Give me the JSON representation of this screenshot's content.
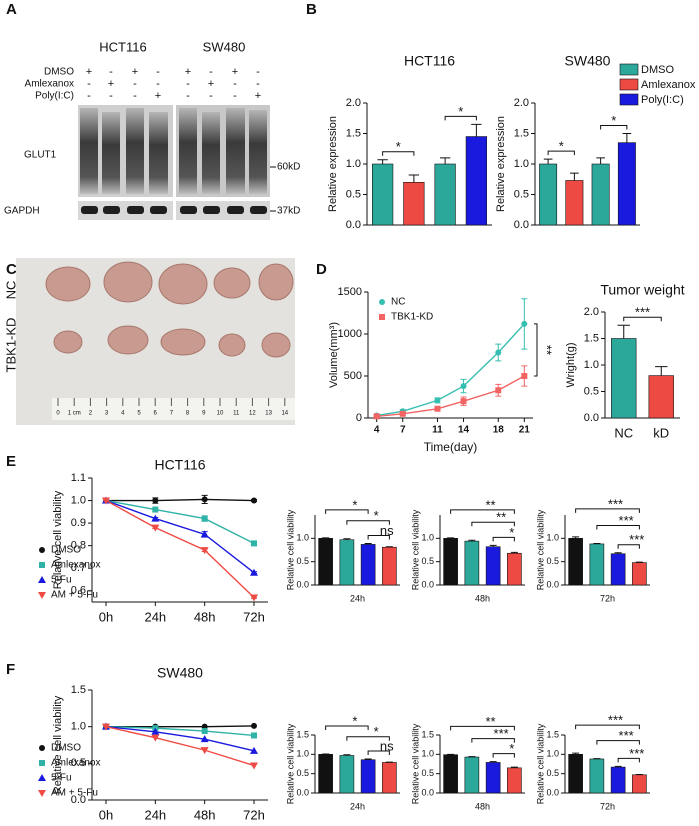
{
  "panel_labels": [
    "A",
    "B",
    "C",
    "D",
    "E",
    "F"
  ],
  "blot": {
    "cell_lines": [
      "HCT116",
      "SW480"
    ],
    "conditions": [
      {
        "name": "DMSO",
        "signs": [
          "+",
          "-",
          "+",
          "-",
          "+",
          "-",
          "+",
          "-"
        ]
      },
      {
        "name": "Amlexanox",
        "signs": [
          "-",
          "+",
          "-",
          "-",
          "-",
          "+",
          "-",
          "-"
        ]
      },
      {
        "name": "Poly(I:C)",
        "signs": [
          "-",
          "-",
          "-",
          "+",
          "-",
          "-",
          "-",
          "+"
        ]
      }
    ],
    "bands": [
      "GLUT1",
      "GAPDH"
    ],
    "markers": [
      "60kD",
      "37kD"
    ]
  },
  "photo": {
    "groups": [
      "NC",
      "TBK1-KD"
    ],
    "ruler": [
      "0",
      "1 cm",
      "2",
      "3",
      "4",
      "5",
      "6",
      "7",
      "8",
      "9",
      "10",
      "11",
      "12",
      "13",
      "14"
    ]
  },
  "chart_data": [
    {
      "type": "bar",
      "title": "HCT116",
      "ylabel": "Relative expression",
      "values": [
        1.0,
        0.7,
        1.0,
        1.45
      ],
      "errors": [
        0.07,
        0.12,
        0.1,
        0.2
      ],
      "colors": [
        "#2ca89a",
        "#ee4a44",
        "#2ca89a",
        "#1a1adf"
      ],
      "ylim": [
        0,
        2
      ],
      "yticks": [
        {
          "value": 0,
          "label": "0.0"
        },
        0.5,
        {
          "value": 1,
          "label": "1.0"
        },
        1.5,
        {
          "value": 2,
          "label": "2.0"
        }
      ],
      "annotations": [
        "*",
        "*"
      ]
    },
    {
      "type": "bar",
      "title": "SW480",
      "ylabel": "Relative expression",
      "values": [
        1.0,
        0.73,
        1.0,
        1.35
      ],
      "errors": [
        0.08,
        0.12,
        0.1,
        0.15
      ],
      "colors": [
        "#2ca89a",
        "#ee4a44",
        "#2ca89a",
        "#1a1adf"
      ],
      "ylim": [
        0,
        2
      ],
      "yticks": [
        {
          "value": 0,
          "label": "0.0"
        },
        0.5,
        {
          "value": 1,
          "label": "1.0"
        },
        1.5,
        {
          "value": 2,
          "label": "2.0"
        }
      ],
      "annotations": [
        "*",
        "*"
      ],
      "legend": [
        {
          "name": "DMSO",
          "color": "#2ca89a"
        },
        {
          "name": "Amlexanox",
          "color": "#ee4a44"
        },
        {
          "name": "Poly(I:C)",
          "color": "#1a1adf"
        }
      ]
    },
    {
      "type": "line",
      "xlabel": "Time(day)",
      "ylabel": "Volume(mm³)",
      "x": [
        4,
        7,
        11,
        14,
        18,
        21
      ],
      "xlim": [
        3,
        22
      ],
      "xticks": [
        4,
        7,
        11,
        14,
        18,
        21
      ],
      "ylim": [
        0,
        1500
      ],
      "yticks": [
        0,
        500,
        1000,
        1500
      ],
      "legend_position": "upper left",
      "annotations": [
        "**"
      ],
      "series": [
        {
          "name": "NC",
          "color": "#36bfb0",
          "marker": "circle",
          "values": [
            30,
            80,
            210,
            380,
            780,
            1120
          ],
          "errors": [
            10,
            20,
            30,
            80,
            100,
            300
          ]
        },
        {
          "name": "TBK1-KD",
          "color": "#f26363",
          "marker": "square",
          "values": [
            20,
            50,
            110,
            200,
            330,
            500
          ],
          "errors": [
            5,
            15,
            20,
            50,
            70,
            120
          ]
        }
      ]
    },
    {
      "type": "bar",
      "title": "Tumor weight",
      "ylabel": "Wright(g)",
      "categories": [
        "NC",
        "kD"
      ],
      "values": [
        1.5,
        0.8
      ],
      "errors": [
        0.25,
        0.17
      ],
      "colors": [
        "#2ca89a",
        "#ee4a44"
      ],
      "ylim": [
        0,
        2
      ],
      "yticks": [
        {
          "value": 0,
          "label": "0.0"
        },
        0.5,
        {
          "value": 1,
          "label": "1.0"
        },
        1.5,
        {
          "value": 2,
          "label": "2.0"
        }
      ],
      "annotations": [
        "***"
      ]
    },
    {
      "type": "line",
      "title": "HCT116",
      "ylabel": "Relative cell viability",
      "categories": [
        "0h",
        "24h",
        "48h",
        "72h"
      ],
      "ylim": [
        0.55,
        1.1
      ],
      "yticks": [
        0.6,
        0.7,
        0.8,
        0.9,
        {
          "value": 1,
          "label": "1.0"
        },
        1.1
      ],
      "legend_position": "lower left",
      "series": [
        {
          "name": "DMSO",
          "color": "#111111",
          "marker": "circle",
          "values": [
            1.0,
            1.0,
            1.005,
            1.0
          ],
          "errors": [
            0,
            0.012,
            0.018,
            0.004
          ]
        },
        {
          "name": "Amlexanox",
          "color": "#2fb3a7",
          "marker": "square",
          "values": [
            1.0,
            0.96,
            0.92,
            0.81
          ],
          "errors": [
            0,
            0.006,
            0.012,
            0.005
          ]
        },
        {
          "name": "5-Fu",
          "color": "#1a1adf",
          "marker": "triangle-up",
          "values": [
            1.0,
            0.92,
            0.85,
            0.68
          ],
          "errors": [
            0,
            0.005,
            0.012,
            0.004
          ]
        },
        {
          "name": "AM + 5-Fu",
          "color": "#f04a44",
          "marker": "triangle-down",
          "values": [
            1.0,
            0.88,
            0.78,
            0.57
          ],
          "errors": [
            0,
            0.004,
            0.006,
            0.004
          ]
        }
      ]
    },
    {
      "type": "bar",
      "xlabel": "24h",
      "ylabel": "Relative cell viability",
      "values": [
        1.0,
        0.97,
        0.87,
        0.81
      ],
      "errors": [
        0.01,
        0.02,
        0.02,
        0.01
      ],
      "colors": [
        "#111111",
        "#2ca89a",
        "#1a1adf",
        "#ee4a44"
      ],
      "ylim": [
        0,
        1.5
      ],
      "yticks": [
        {
          "value": 0,
          "label": "0.0"
        },
        0.5,
        {
          "value": 1,
          "label": "1.0"
        }
      ],
      "annotations": [
        "*",
        "*",
        "ns"
      ]
    },
    {
      "type": "bar",
      "xlabel": "48h",
      "ylabel": "Relative cell viability",
      "values": [
        1.0,
        0.94,
        0.82,
        0.68
      ],
      "errors": [
        0.01,
        0.02,
        0.03,
        0.02
      ],
      "colors": [
        "#111111",
        "#2ca89a",
        "#1a1adf",
        "#ee4a44"
      ],
      "ylim": [
        0,
        1.5
      ],
      "yticks": [
        {
          "value": 0,
          "label": "0.0"
        },
        0.5,
        {
          "value": 1,
          "label": "1.0"
        }
      ],
      "annotations": [
        "**",
        "**",
        "*"
      ]
    },
    {
      "type": "bar",
      "xlabel": "72h",
      "ylabel": "Relative cell viability",
      "values": [
        1.0,
        0.88,
        0.67,
        0.48
      ],
      "errors": [
        0.03,
        0.01,
        0.02,
        0.01
      ],
      "colors": [
        "#111111",
        "#2ca89a",
        "#1a1adf",
        "#ee4a44"
      ],
      "ylim": [
        0,
        1.5
      ],
      "yticks": [
        {
          "value": 0,
          "label": "0.0"
        },
        0.5,
        {
          "value": 1,
          "label": "1.0"
        }
      ],
      "annotations": [
        "***",
        "***",
        "***"
      ]
    },
    {
      "type": "line",
      "title": "SW480",
      "ylabel": "Relative cell viability",
      "categories": [
        "0h",
        "24h",
        "48h",
        "72h"
      ],
      "ylim": [
        0,
        1.5
      ],
      "yticks": [
        {
          "value": 0,
          "label": "0.0"
        },
        0.5,
        {
          "value": 1,
          "label": "1.0"
        },
        1.5
      ],
      "legend_position": "lower left",
      "series": [
        {
          "name": "DMSO",
          "color": "#111111",
          "marker": "circle",
          "values": [
            1.0,
            1.0,
            1.0,
            1.01
          ]
        },
        {
          "name": "Amlexanox",
          "color": "#2fb3a7",
          "marker": "square",
          "values": [
            1.0,
            0.98,
            0.94,
            0.88
          ]
        },
        {
          "name": "5-Fu",
          "color": "#1a1adf",
          "marker": "triangle-up",
          "values": [
            1.0,
            0.93,
            0.83,
            0.67
          ]
        },
        {
          "name": "AM + 5-Fu",
          "color": "#f04a44",
          "marker": "triangle-down",
          "values": [
            1.0,
            0.85,
            0.68,
            0.47
          ]
        }
      ]
    },
    {
      "type": "bar",
      "xlabel": "24h",
      "ylabel": "Relative cell viability",
      "values": [
        1.0,
        0.97,
        0.86,
        0.79
      ],
      "errors": [
        0.01,
        0.02,
        0.02,
        0.01
      ],
      "colors": [
        "#111111",
        "#2ca89a",
        "#1a1adf",
        "#ee4a44"
      ],
      "ylim": [
        0,
        1.5
      ],
      "yticks": [
        {
          "value": 0,
          "label": "0.0"
        },
        0.5,
        {
          "value": 1,
          "label": "1.0"
        },
        1.5
      ],
      "annotations": [
        "*",
        "*",
        "ns"
      ]
    },
    {
      "type": "bar",
      "xlabel": "48h",
      "ylabel": "Relative cell viability",
      "values": [
        0.99,
        0.93,
        0.79,
        0.65
      ],
      "errors": [
        0.01,
        0.01,
        0.02,
        0.02
      ],
      "colors": [
        "#111111",
        "#2ca89a",
        "#1a1adf",
        "#ee4a44"
      ],
      "ylim": [
        0,
        1.5
      ],
      "yticks": [
        {
          "value": 0,
          "label": "0.0"
        },
        0.5,
        {
          "value": 1,
          "label": "1.0"
        },
        1.5
      ],
      "annotations": [
        "**",
        "***",
        "*"
      ]
    },
    {
      "type": "bar",
      "xlabel": "72h",
      "ylabel": "Relative cell viability",
      "values": [
        1.0,
        0.88,
        0.67,
        0.47
      ],
      "errors": [
        0.03,
        0.01,
        0.02,
        0.01
      ],
      "colors": [
        "#111111",
        "#2ca89a",
        "#1a1adf",
        "#ee4a44"
      ],
      "ylim": [
        0,
        1.5
      ],
      "yticks": [
        {
          "value": 0,
          "label": "0.0"
        },
        0.5,
        {
          "value": 1,
          "label": "1.0"
        },
        1.5
      ],
      "annotations": [
        "***",
        "***",
        "***"
      ]
    }
  ]
}
